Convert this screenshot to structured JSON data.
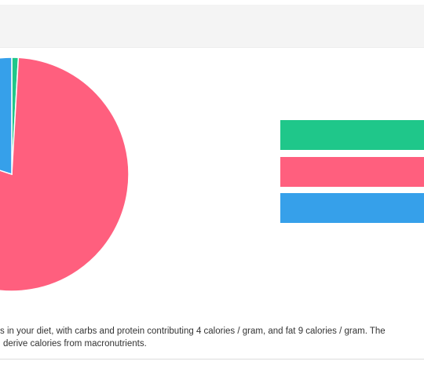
{
  "chart_data": {
    "type": "pie",
    "title": "",
    "slices": [
      {
        "label": "",
        "value": 0.9,
        "color": "#1fc78a"
      },
      {
        "label": "",
        "value": 79.1,
        "color": "#ff5f7e"
      },
      {
        "label": "",
        "value": 20.0,
        "color": "#36a0ea"
      }
    ],
    "legend": {
      "placement": "right",
      "entries": [
        {
          "label": "",
          "color": "#1fc78a"
        },
        {
          "label": "",
          "color": "#ff5f7e"
        },
        {
          "label": "",
          "color": "#36a0ea"
        }
      ]
    }
  },
  "caption": {
    "line1": "s in your diet, with carbs and protein contributing 4 calories / gram, and fat 9 calories / gram. The",
    "line2": "derive calories from macronutrients."
  }
}
